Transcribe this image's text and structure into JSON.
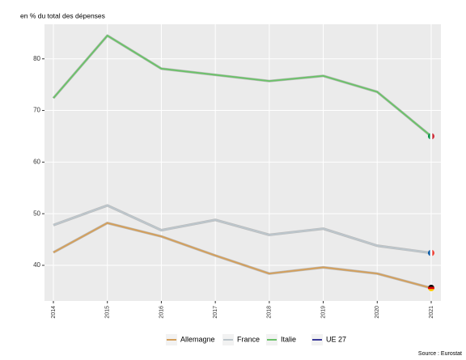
{
  "chart_data": {
    "type": "line",
    "title": "en % du total des dépenses",
    "source": "Source : Eurostat",
    "categories": [
      "2014",
      "2015",
      "2016",
      "2017",
      "2018",
      "2019",
      "2020",
      "2021"
    ],
    "series": [
      {
        "name": "Allemagne",
        "color": "#d4a05c",
        "values": [
          42.5,
          48.2,
          45.6,
          41.9,
          38.4,
          39.6,
          38.4,
          35.6
        ]
      },
      {
        "name": "France",
        "color": "#bcc6cc",
        "values": [
          47.8,
          51.6,
          46.8,
          48.8,
          45.9,
          47.1,
          43.8,
          42.4
        ]
      },
      {
        "name": "Italie",
        "color": "#6cc26a",
        "values": [
          72.4,
          84.5,
          78.1,
          76.9,
          75.7,
          76.7,
          73.6,
          65.0
        ]
      },
      {
        "name": "UE 27",
        "color": "#3a3a9a",
        "values": [
          null,
          null,
          null,
          null,
          null,
          null,
          null,
          null
        ]
      }
    ],
    "ylim": [
      33.1,
      86.7
    ],
    "yticks": [
      40,
      50,
      60,
      70,
      80
    ],
    "grid": true,
    "legend": "bottom"
  }
}
